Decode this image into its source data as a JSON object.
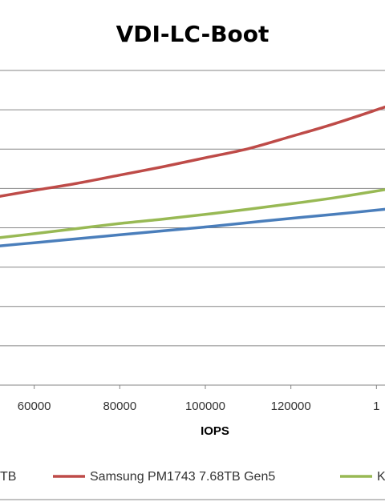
{
  "chart_data": {
    "type": "line",
    "title": "VDI-LC-Boot",
    "xlabel": "IOPS",
    "ylabel": "",
    "x_ticks": [
      "60000",
      "80000",
      "100000",
      "120000",
      "1"
    ],
    "xlim": [
      52000,
      142000
    ],
    "ylim": [
      0,
      8
    ],
    "grid": true,
    "legend_position": "bottom",
    "series": [
      {
        "name": "TB",
        "color": "#4a7ebb",
        "x": [
          52000,
          60000,
          70000,
          80000,
          90000,
          100000,
          110000,
          120000,
          130000,
          142000
        ],
        "y": [
          3.54,
          3.62,
          3.72,
          3.82,
          3.92,
          4.02,
          4.13,
          4.24,
          4.34,
          4.47
        ]
      },
      {
        "name": "Samsung PM1743 7.68TB Gen5",
        "color": "#be4b48",
        "x": [
          52000,
          60000,
          70000,
          80000,
          90000,
          100000,
          110000,
          120000,
          130000,
          142000
        ],
        "y": [
          4.8,
          4.95,
          5.13,
          5.34,
          5.55,
          5.78,
          6.01,
          6.32,
          6.64,
          7.07
        ]
      },
      {
        "name": "K",
        "color": "#98b954",
        "x": [
          52000,
          60000,
          70000,
          80000,
          90000,
          100000,
          110000,
          120000,
          130000,
          142000
        ],
        "y": [
          3.75,
          3.85,
          3.98,
          4.11,
          4.22,
          4.34,
          4.47,
          4.61,
          4.76,
          4.97
        ]
      }
    ]
  }
}
